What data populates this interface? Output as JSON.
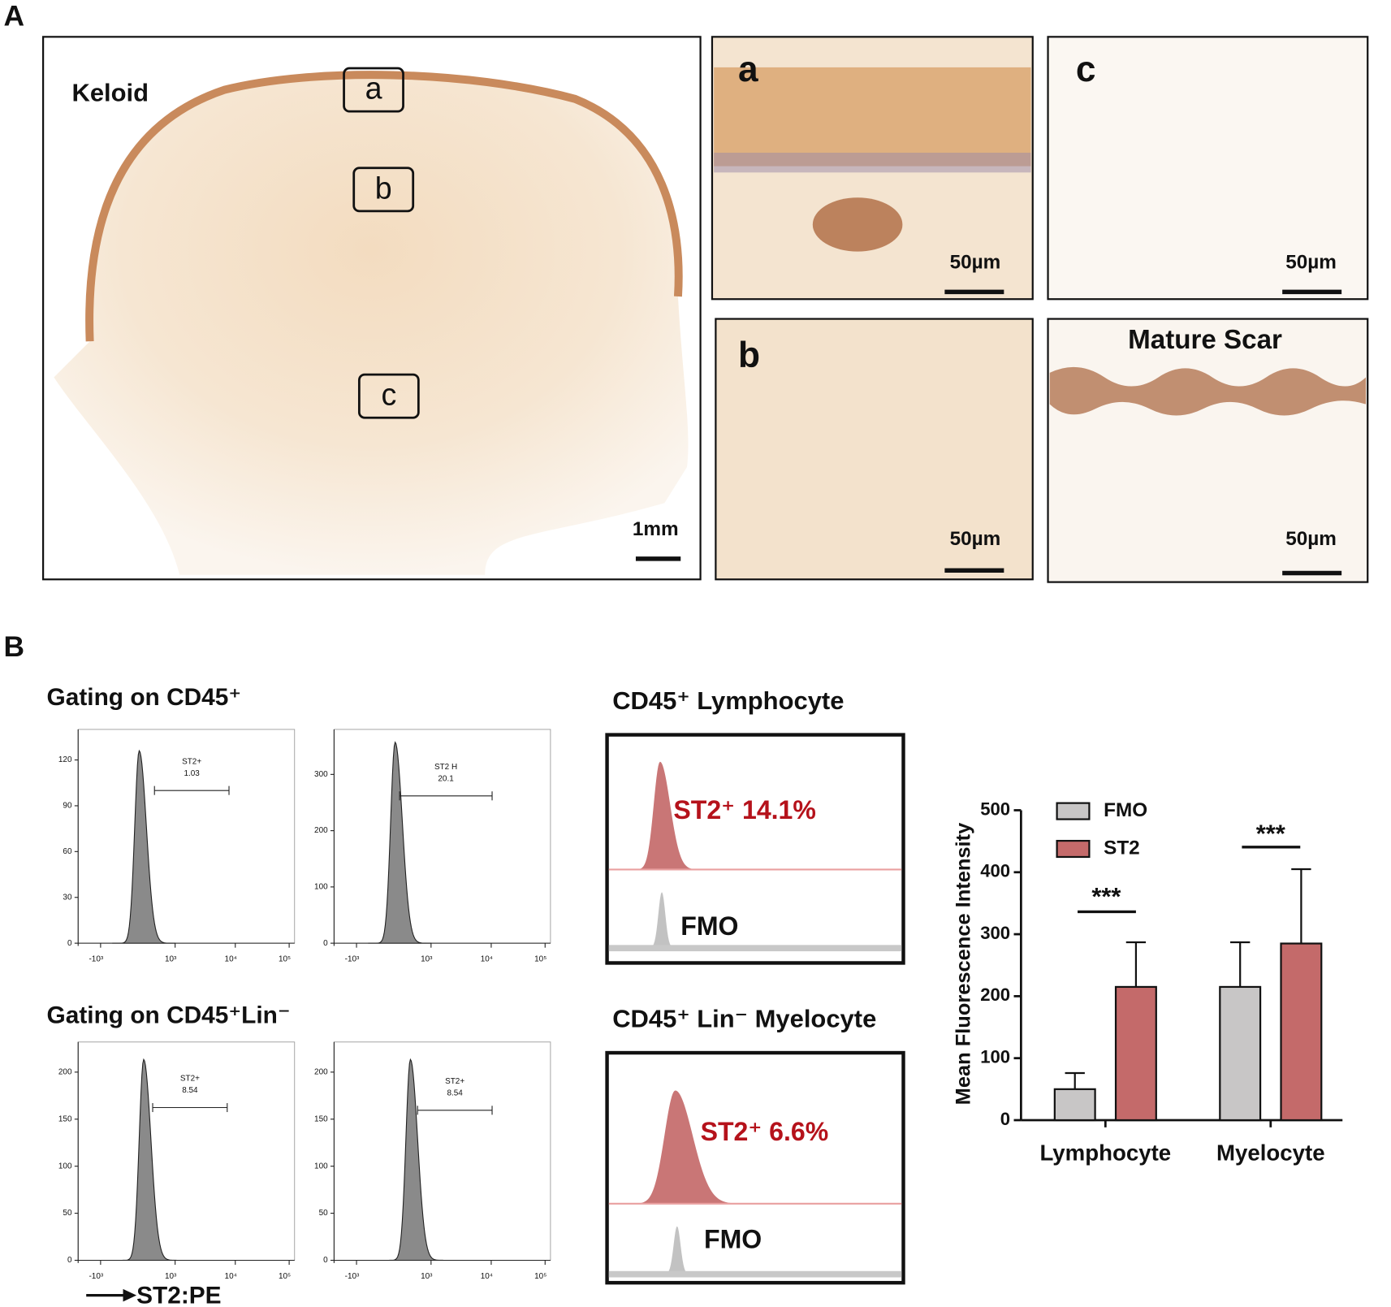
{
  "panel_a": {
    "letter": "A",
    "keloid": "Keloid",
    "regions": [
      "a",
      "b",
      "c"
    ],
    "scale_big": "1mm",
    "insets": [
      "a",
      "c",
      "b",
      "Mature Scar"
    ],
    "scale_small": [
      "50µm",
      "50µm",
      "50µm",
      "50µm"
    ]
  },
  "panel_b": {
    "letter": "B",
    "rows": [
      "Gating on CD45⁺",
      "Gating on CD45⁺Lin⁻"
    ],
    "x_axis_title": "ST2:PE",
    "histograms": [
      {
        "ylim": [
          0,
          140
        ],
        "yticks": [
          0,
          30,
          60,
          90,
          120
        ],
        "xtick_labels": [
          "-10³",
          "10³",
          "10⁴",
          "10⁵"
        ],
        "gate_name": "ST2+",
        "gate_value": "1.03"
      },
      {
        "ylim": [
          0,
          380
        ],
        "yticks": [
          0,
          100,
          200,
          300
        ],
        "xtick_labels": [
          "-10³",
          "10³",
          "10⁴",
          "10⁵"
        ],
        "gate_name": "ST2 H",
        "gate_value": "20.1"
      },
      {
        "ylim": [
          0,
          232
        ],
        "yticks": [
          0,
          50,
          100,
          150,
          200
        ],
        "xtick_labels": [
          "-10³",
          "10³",
          "10⁴",
          "10⁵"
        ],
        "gate_name": "ST2+",
        "gate_value": "8.54"
      },
      {
        "ylim": [
          0,
          232
        ],
        "yticks": [
          0,
          50,
          100,
          150,
          200
        ],
        "xtick_labels": [
          "-10³",
          "10³",
          "10⁴",
          "10⁵"
        ],
        "gate_name": "ST2+",
        "gate_value": "8.54"
      }
    ],
    "overlays": [
      {
        "title": "CD45⁺ Lymphocyte",
        "positive": "ST2⁺ 14.1%",
        "control": "FMO"
      },
      {
        "title": "CD45⁺ Lin⁻ Myelocyte",
        "positive": "ST2⁺ 6.6%",
        "control": "FMO"
      }
    ]
  },
  "chart_data": {
    "type": "bar",
    "ylabel": "Mean Fluorescence Intensity",
    "categories": [
      "Lymphocyte",
      "Myelocyte"
    ],
    "series": [
      {
        "name": "FMO",
        "color": "#c8c6c6",
        "values": [
          50,
          215
        ],
        "errors": [
          26,
          72
        ]
      },
      {
        "name": "ST2",
        "color": "#c46a6a",
        "values": [
          215,
          285
        ],
        "errors": [
          72,
          120
        ]
      }
    ],
    "ylim": [
      0,
      500
    ],
    "yticks": [
      0,
      100,
      200,
      300,
      400,
      500
    ],
    "annotations": [
      "***",
      "***"
    ]
  }
}
